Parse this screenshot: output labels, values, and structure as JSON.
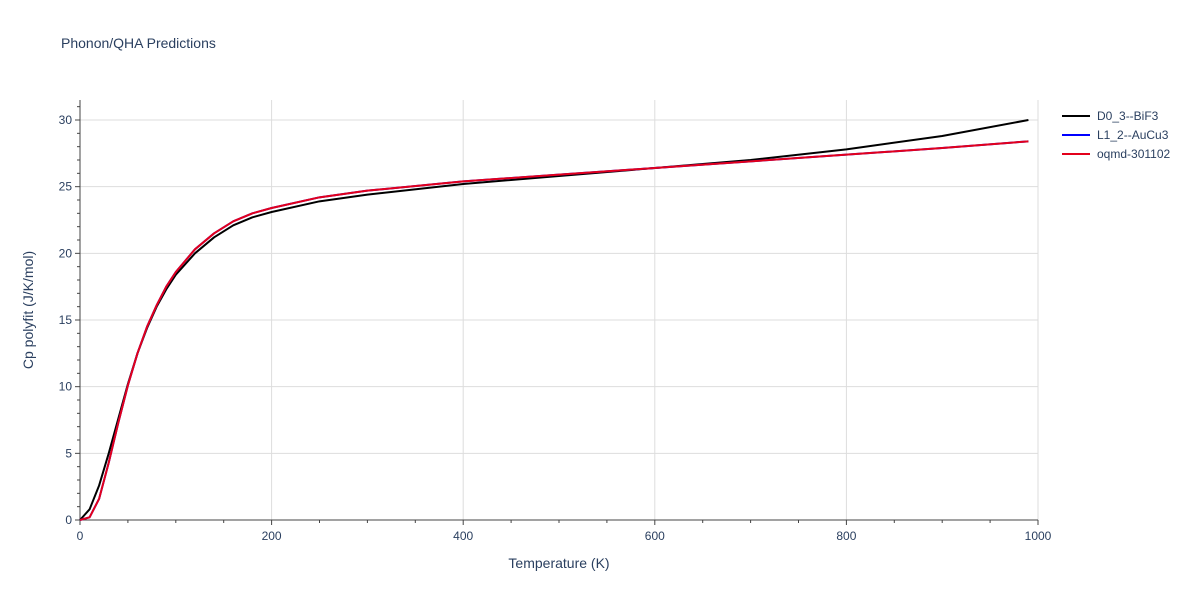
{
  "chart_data": {
    "type": "line",
    "title": "Phonon/QHA Predictions",
    "xlabel": "Temperature (K)",
    "ylabel": "Cp polyfit (J/K/mol)",
    "xlim": [
      0,
      1000
    ],
    "ylim": [
      0,
      31.5
    ],
    "x_ticks": [
      0,
      200,
      400,
      600,
      800,
      1000
    ],
    "y_ticks": [
      0,
      5,
      10,
      15,
      20,
      25,
      30
    ],
    "grid": true,
    "legend_position": "top-right",
    "series": [
      {
        "name": "D0_3--BiF3",
        "color": "#000000",
        "x": [
          0,
          10,
          20,
          30,
          40,
          50,
          60,
          70,
          80,
          90,
          100,
          120,
          140,
          160,
          180,
          200,
          250,
          300,
          400,
          500,
          600,
          700,
          800,
          900,
          990
        ],
        "y": [
          0,
          0.8,
          2.6,
          5.0,
          7.6,
          10.2,
          12.5,
          14.4,
          16.0,
          17.3,
          18.4,
          20.0,
          21.2,
          22.1,
          22.7,
          23.1,
          23.9,
          24.4,
          25.2,
          25.8,
          26.4,
          27.0,
          27.8,
          28.8,
          30.0
        ]
      },
      {
        "name": "L1_2--AuCu3",
        "color": "#0000ff",
        "x": [
          0,
          10,
          20,
          30,
          40,
          50,
          60,
          70,
          80,
          90,
          100,
          120,
          140,
          160,
          180,
          200,
          250,
          300,
          400,
          500,
          600,
          700,
          800,
          900,
          990
        ],
        "y": [
          0,
          0.2,
          1.6,
          4.3,
          7.3,
          10.1,
          12.5,
          14.5,
          16.1,
          17.5,
          18.6,
          20.3,
          21.5,
          22.4,
          23.0,
          23.4,
          24.2,
          24.7,
          25.4,
          25.9,
          26.4,
          26.9,
          27.4,
          27.9,
          28.4
        ]
      },
      {
        "name": "oqmd-301102",
        "color": "#e3001b",
        "x": [
          0,
          10,
          20,
          30,
          40,
          50,
          60,
          70,
          80,
          90,
          100,
          120,
          140,
          160,
          180,
          200,
          250,
          300,
          400,
          500,
          600,
          700,
          800,
          900,
          990
        ],
        "y": [
          0,
          0.2,
          1.6,
          4.3,
          7.3,
          10.1,
          12.5,
          14.5,
          16.1,
          17.5,
          18.6,
          20.3,
          21.5,
          22.4,
          23.0,
          23.4,
          24.2,
          24.7,
          25.4,
          25.9,
          26.4,
          26.9,
          27.4,
          27.9,
          28.4
        ]
      }
    ]
  }
}
